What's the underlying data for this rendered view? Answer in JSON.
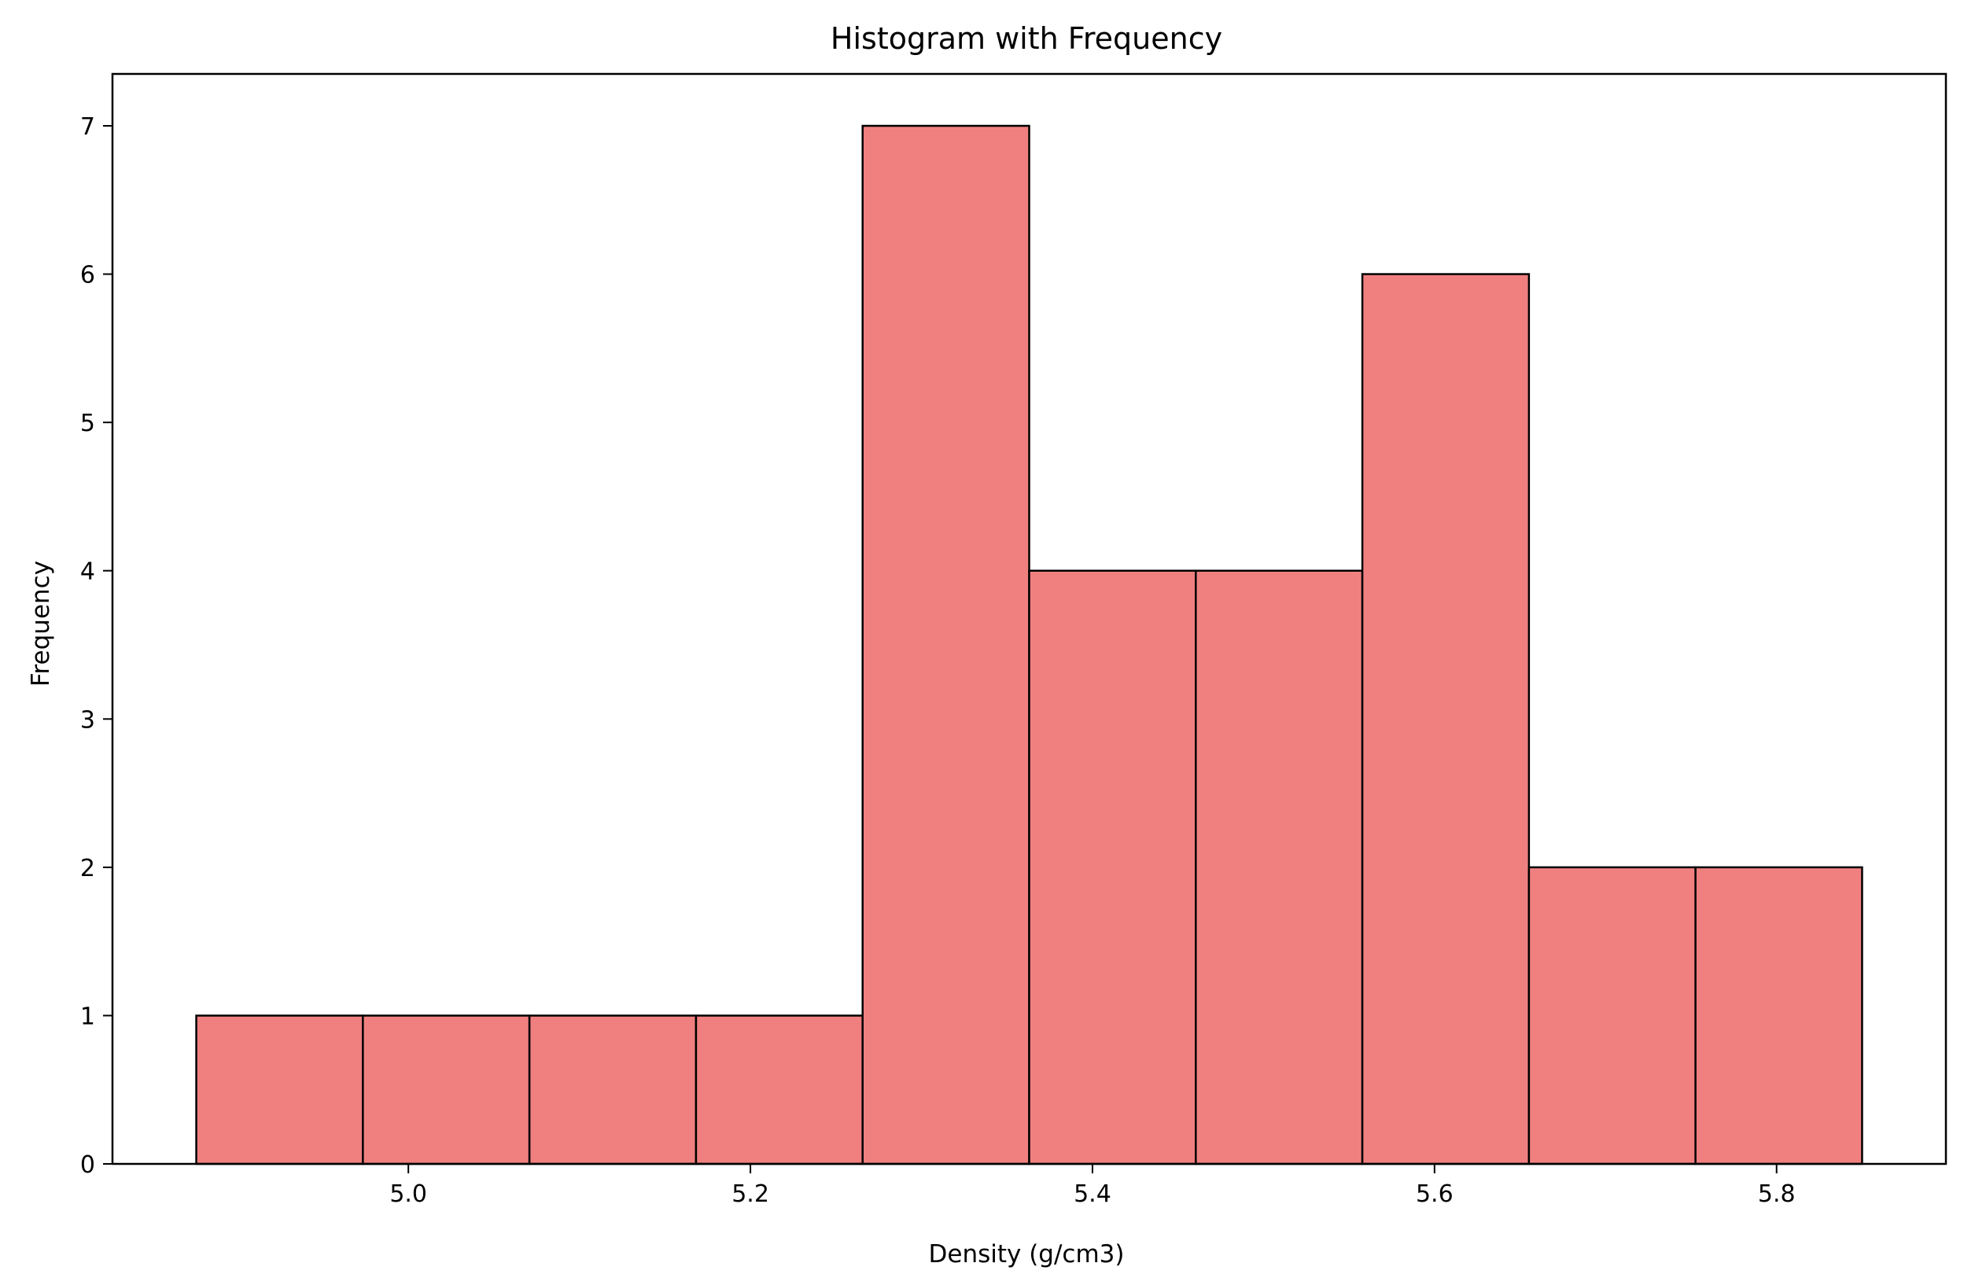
{
  "chart_data": {
    "type": "bar",
    "title": "Histogram with Frequency",
    "xlabel": "Density (g/cm3)",
    "ylabel": "Frequency",
    "bin_edges": [
      4.876,
      4.9734,
      5.0708,
      5.1682,
      5.2656,
      5.363,
      5.4604,
      5.5578,
      5.6552,
      5.7526,
      5.85
    ],
    "values": [
      1,
      1,
      1,
      1,
      7,
      4,
      4,
      6,
      2,
      2
    ],
    "xlim": [
      4.827,
      5.899
    ],
    "ylim": [
      0,
      7.35
    ],
    "x_ticks": [
      "5.0",
      "5.2",
      "5.4",
      "5.6",
      "5.8"
    ],
    "y_ticks": [
      "0",
      "1",
      "2",
      "3",
      "4",
      "5",
      "6",
      "7"
    ],
    "bar_color": "#f08080",
    "edge_color": "#000000",
    "grid": false,
    "legend": "none"
  }
}
